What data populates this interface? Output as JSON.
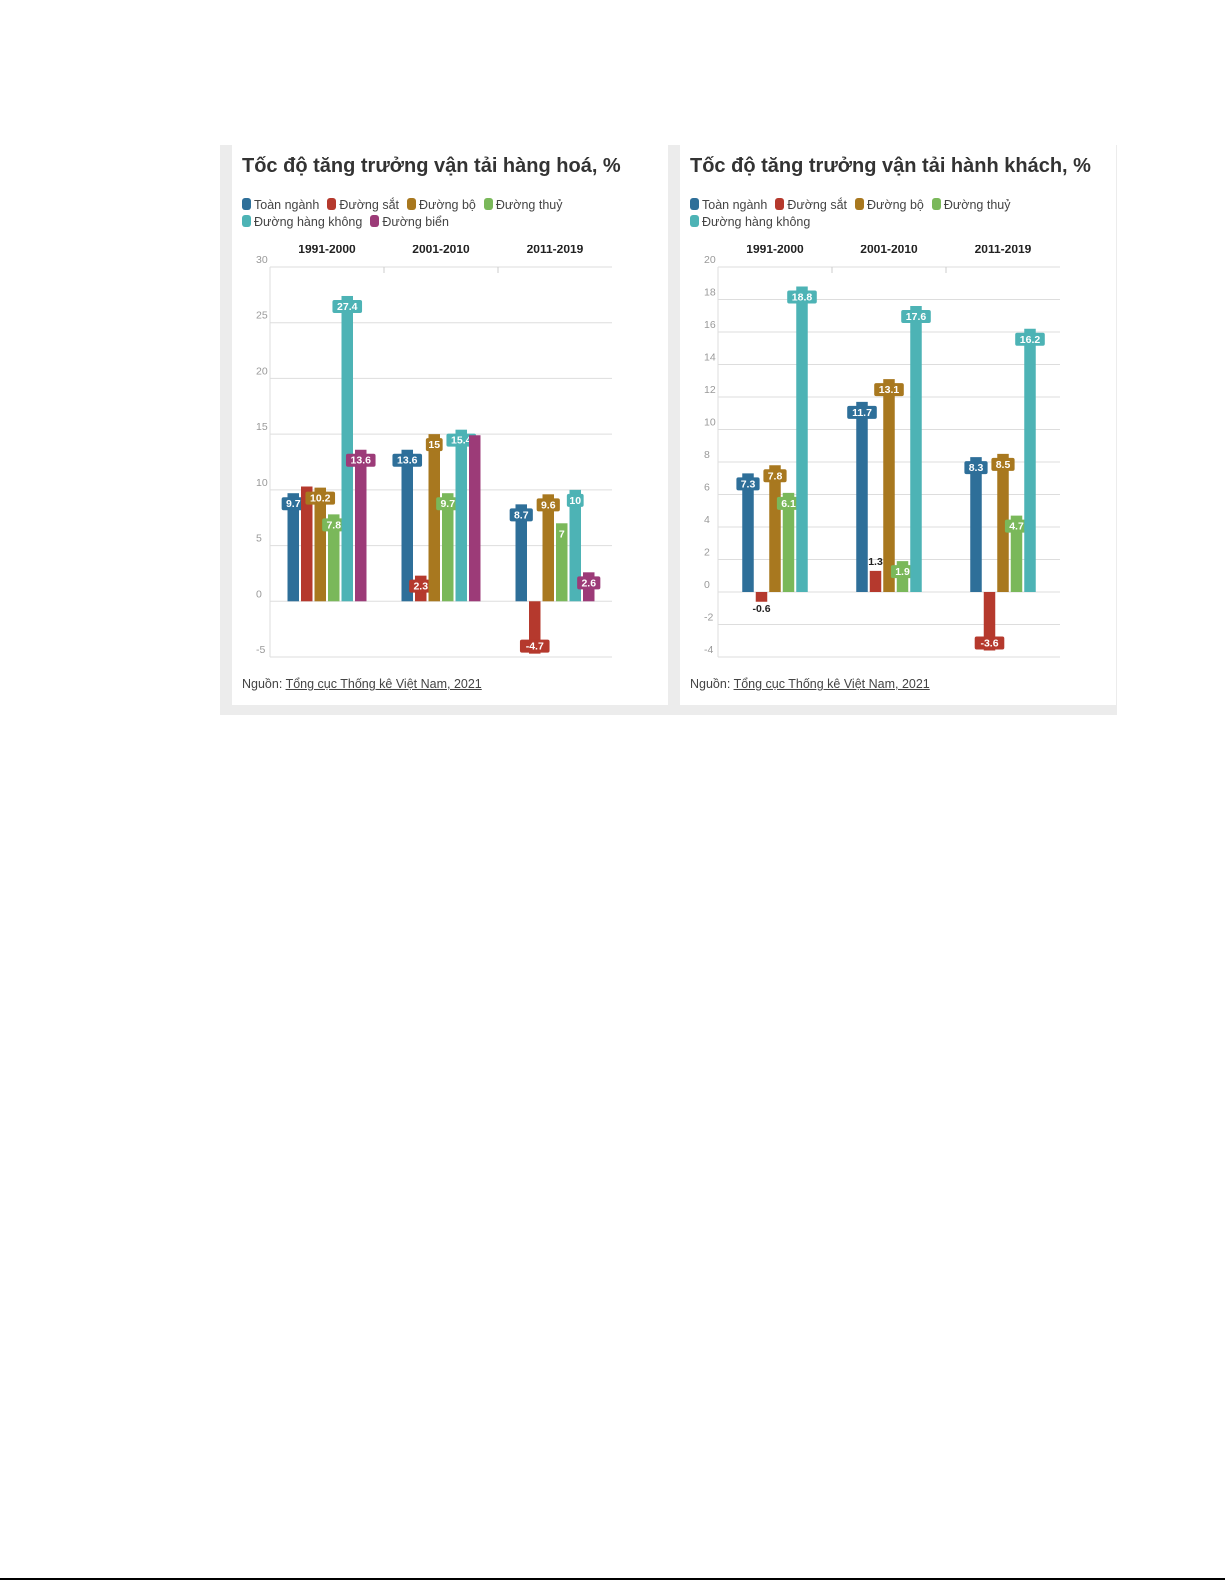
{
  "colors": {
    "toan_nganh": "#2e6f99",
    "duong_sat": "#b5392d",
    "duong_bo": "#a8781f",
    "duong_thuy": "#7ab85a",
    "hang_khong": "#4db3b5",
    "duong_bien": "#9c3b78"
  },
  "chart_data": [
    {
      "type": "bar",
      "title": "Tốc độ tăng trưởng vận tải hàng hoá, %",
      "categories": [
        "1991-2000",
        "2001-2010",
        "2011-2019"
      ],
      "ylim": [
        -5,
        30
      ],
      "yticks": [
        -5,
        0,
        5,
        10,
        15,
        20,
        25,
        30
      ],
      "grid": true,
      "legend_position": "top",
      "series": [
        {
          "name": "Toàn ngành",
          "color": "#2e6f99",
          "values": [
            9.7,
            13.6,
            8.7
          ],
          "labels": [
            "9.7",
            "13.6",
            "8.7"
          ]
        },
        {
          "name": "Đường sắt",
          "color": "#b5392d",
          "values": [
            10.3,
            2.3,
            -4.7
          ],
          "labels": [
            "",
            "2.3",
            "-4.7"
          ]
        },
        {
          "name": "Đường bộ",
          "color": "#a8781f",
          "values": [
            10.2,
            15,
            9.6
          ],
          "labels": [
            "10.2",
            "15",
            "9.6"
          ]
        },
        {
          "name": "Đường thuỷ",
          "color": "#7ab85a",
          "values": [
            7.8,
            9.7,
            7
          ],
          "labels": [
            "7.8",
            "9.7",
            "7"
          ]
        },
        {
          "name": "Đường hàng không",
          "color": "#4db3b5",
          "values": [
            27.4,
            15.4,
            10
          ],
          "labels": [
            "27.4",
            "15.4",
            "10"
          ]
        },
        {
          "name": "Đường biển",
          "color": "#9c3b78",
          "values": [
            13.6,
            14.9,
            2.6
          ],
          "labels": [
            "13.6",
            "",
            "2.6"
          ]
        }
      ],
      "source_prefix": "Nguồn: ",
      "source_link": "Tổng cục Thống kê Việt Nam, 2021"
    },
    {
      "type": "bar",
      "title": "Tốc độ tăng trưởng vận tải hành khách, %",
      "categories": [
        "1991-2000",
        "2001-2010",
        "2011-2019"
      ],
      "ylim": [
        -4,
        20
      ],
      "yticks": [
        -4,
        -2,
        0,
        2,
        4,
        6,
        8,
        10,
        12,
        14,
        16,
        18,
        20
      ],
      "grid": true,
      "legend_position": "top",
      "series": [
        {
          "name": "Toàn ngành",
          "color": "#2e6f99",
          "values": [
            7.3,
            11.7,
            8.3
          ],
          "labels": [
            "7.3",
            "11.7",
            "8.3"
          ]
        },
        {
          "name": "Đường sắt",
          "color": "#b5392d",
          "values": [
            -0.6,
            1.3,
            -3.6
          ],
          "labels": [
            "-0.6",
            "1.3",
            "-3.6"
          ]
        },
        {
          "name": "Đường bộ",
          "color": "#a8781f",
          "values": [
            7.8,
            13.1,
            8.5
          ],
          "labels": [
            "7.8",
            "13.1",
            "8.5"
          ]
        },
        {
          "name": "Đường thuỷ",
          "color": "#7ab85a",
          "values": [
            6.1,
            1.9,
            4.7
          ],
          "labels": [
            "6.1",
            "1.9",
            "4.7"
          ]
        },
        {
          "name": "Đường hàng không",
          "color": "#4db3b5",
          "values": [
            18.8,
            17.6,
            16.2
          ],
          "labels": [
            "18.8",
            "17.6",
            "16.2"
          ]
        }
      ],
      "source_prefix": "Nguồn: ",
      "source_link": "Tổng cục Thống kê Việt Nam, 2021"
    }
  ]
}
